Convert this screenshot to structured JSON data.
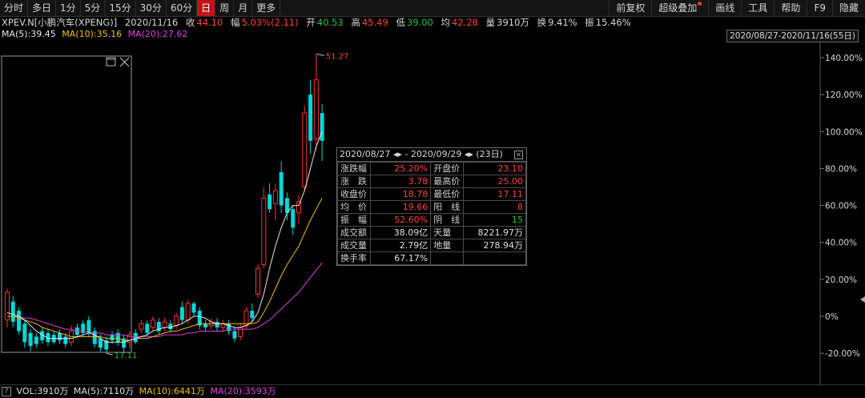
{
  "toolbar": {
    "left_items": [
      "分时",
      "多日",
      "1分",
      "5分",
      "15分",
      "30分",
      "60分",
      "日",
      "周",
      "月",
      "更多"
    ],
    "active": "日",
    "right_items": [
      "前复权",
      "超级叠加",
      "画线",
      "工具",
      "帮助",
      "F9",
      "隐藏"
    ]
  },
  "quote": {
    "symbol": "XPEV.N[小鹏汽车(XPENG)]",
    "date": "2020/11/16",
    "close_label": "收",
    "close": "44.10",
    "amp_label": "幅",
    "amp": "5.03%(2.11)",
    "open_label": "开",
    "open": "40.53",
    "high_label": "高",
    "high": "45.49",
    "low_label": "低",
    "low": "39.00",
    "avg_label": "均",
    "avg": "42.28",
    "vol_label": "量",
    "vol": "3910万",
    "turnover_label": "换",
    "turnover": "9.41%",
    "swing_label": "振",
    "swing": "15.46%"
  },
  "ma": {
    "ma5": "MA(5):39.45",
    "ma10": "MA(10):35.16",
    "ma20": "MA(20):27.62"
  },
  "range": "2020/08/27-2020/11/16(55日)",
  "colors": {
    "up": "#ff3030",
    "down": "#00d8d8",
    "ma5": "#e8e8e8",
    "ma10": "#f0c000",
    "ma20": "#e040e0"
  },
  "chart_data": {
    "type": "candlestick",
    "y_axis_labels": [
      "140.00%",
      "120.00%",
      "100.00%",
      "80.00%",
      "60.00%",
      "40.00%",
      "20.00%",
      "0%",
      "-20.00%"
    ],
    "y_ticks": [
      140,
      120,
      100,
      80,
      60,
      40,
      20,
      0,
      -20
    ],
    "ylim": [
      -25,
      145
    ],
    "high_annotation": "51.27",
    "low_annotation": "17.11",
    "candles": [
      {
        "o": -2,
        "c": 13,
        "h": 15,
        "l": -6
      },
      {
        "o": 8,
        "c": -3,
        "h": 11,
        "l": -6
      },
      {
        "o": 3,
        "c": -8,
        "h": 5,
        "l": -10
      },
      {
        "o": -4,
        "c": -14,
        "h": -2,
        "l": -17
      },
      {
        "o": -9,
        "c": -16,
        "h": -7,
        "l": -19
      },
      {
        "o": -11,
        "c": -15,
        "h": -9,
        "l": -17
      },
      {
        "o": -8,
        "c": -13,
        "h": -6,
        "l": -15
      },
      {
        "o": -9,
        "c": -14,
        "h": -7,
        "l": -16
      },
      {
        "o": -10,
        "c": -14,
        "h": -8,
        "l": -15
      },
      {
        "o": -9,
        "c": -13,
        "h": -7,
        "l": -15
      },
      {
        "o": -11,
        "c": -15,
        "h": -9,
        "l": -17
      },
      {
        "o": -14,
        "c": -8,
        "h": -5,
        "l": -16
      },
      {
        "o": -6,
        "c": -10,
        "h": -4,
        "l": -12
      },
      {
        "o": -4,
        "c": -9,
        "h": -2,
        "l": -11
      },
      {
        "o": -2,
        "c": -9,
        "h": 0,
        "l": -11
      },
      {
        "o": -8,
        "c": -15,
        "h": -6,
        "l": -17
      },
      {
        "o": -12,
        "c": -17,
        "h": -10,
        "l": -19
      },
      {
        "o": -13,
        "c": -18,
        "h": -11,
        "l": -20
      },
      {
        "o": -10,
        "c": -13,
        "h": -8,
        "l": -15
      },
      {
        "o": -9,
        "c": -14,
        "h": -7,
        "l": -16
      },
      {
        "o": -12,
        "c": -17,
        "h": -10,
        "l": -20
      },
      {
        "o": -14,
        "c": -10,
        "h": -8,
        "l": -17
      },
      {
        "o": -9,
        "c": -14,
        "h": -7,
        "l": -15
      },
      {
        "o": -7,
        "c": -4,
        "h": -2,
        "l": -9
      },
      {
        "o": -4,
        "c": -9,
        "h": -2,
        "l": -11
      },
      {
        "o": -6,
        "c": -2,
        "h": 0,
        "l": -8
      },
      {
        "o": -3,
        "c": -8,
        "h": -1,
        "l": -10
      },
      {
        "o": -6,
        "c": -3,
        "h": -1,
        "l": -8
      },
      {
        "o": -4,
        "c": -7,
        "h": -2,
        "l": -9
      },
      {
        "o": -5,
        "c": 0,
        "h": 2,
        "l": -7
      },
      {
        "o": 5,
        "c": -2,
        "h": 8,
        "l": -4
      },
      {
        "o": -2,
        "c": 7,
        "h": 9,
        "l": -4
      },
      {
        "o": 7,
        "c": 2,
        "h": 8,
        "l": 0
      },
      {
        "o": 3,
        "c": -5,
        "h": 5,
        "l": -7
      },
      {
        "o": -4,
        "c": -6,
        "h": -2,
        "l": -8
      },
      {
        "o": -5,
        "c": -3,
        "h": -1,
        "l": -7
      },
      {
        "o": -3,
        "c": -6,
        "h": -1,
        "l": -8
      },
      {
        "o": -6,
        "c": -4,
        "h": -2,
        "l": -8
      },
      {
        "o": -4,
        "c": -8,
        "h": -2,
        "l": -10
      },
      {
        "o": -8,
        "c": -12,
        "h": -6,
        "l": -14
      },
      {
        "o": -11,
        "c": -6,
        "h": -4,
        "l": -13
      },
      {
        "o": -5,
        "c": 3,
        "h": 5,
        "l": -7
      },
      {
        "o": 3,
        "c": -1,
        "h": 7,
        "l": -3
      },
      {
        "o": 12,
        "c": 26,
        "h": 28,
        "l": 10
      },
      {
        "o": 28,
        "c": 64,
        "h": 70,
        "l": 26
      },
      {
        "o": 66,
        "c": 58,
        "h": 72,
        "l": 56
      },
      {
        "o": 61,
        "c": 68,
        "h": 72,
        "l": 52
      },
      {
        "o": 78,
        "c": 60,
        "h": 84,
        "l": 56
      },
      {
        "o": 64,
        "c": 56,
        "h": 67,
        "l": 52
      },
      {
        "o": 58,
        "c": 48,
        "h": 60,
        "l": 44
      },
      {
        "o": 56,
        "c": 62,
        "h": 66,
        "l": 50
      },
      {
        "o": 70,
        "c": 110,
        "h": 114,
        "l": 68
      },
      {
        "o": 120,
        "c": 95,
        "h": 128,
        "l": 88
      },
      {
        "o": 96,
        "c": 128,
        "h": 142,
        "l": 90
      },
      {
        "o": 110,
        "c": 95,
        "h": 115,
        "l": 84
      }
    ],
    "ma5": [
      2,
      1,
      0,
      -2,
      -5,
      -8,
      -10,
      -12,
      -12,
      -12,
      -12,
      -12,
      -11,
      -10,
      -9,
      -10,
      -12,
      -14,
      -14,
      -14,
      -14,
      -13,
      -12,
      -11,
      -10,
      -8,
      -7,
      -6,
      -6,
      -5,
      -4,
      -2,
      0,
      0,
      -1,
      -3,
      -4,
      -4,
      -5,
      -6,
      -6,
      -5,
      -3,
      2,
      12,
      26,
      38,
      48,
      56,
      60,
      60,
      68,
      80,
      92,
      100
    ],
    "ma10": [
      0,
      0,
      -1,
      -2,
      -3,
      -4,
      -6,
      -7,
      -8,
      -9,
      -10,
      -11,
      -11,
      -11,
      -11,
      -11,
      -11,
      -12,
      -12,
      -12,
      -13,
      -13,
      -12,
      -12,
      -12,
      -11,
      -10,
      -9,
      -8,
      -8,
      -7,
      -6,
      -5,
      -4,
      -4,
      -4,
      -4,
      -4,
      -4,
      -4,
      -4,
      -4,
      -4,
      -3,
      2,
      8,
      15,
      22,
      28,
      33,
      38,
      45,
      52,
      58,
      64
    ],
    "ma20": [
      0,
      0,
      0,
      -1,
      -1,
      -2,
      -3,
      -4,
      -5,
      -6,
      -7,
      -7,
      -8,
      -8,
      -9,
      -9,
      -9,
      -10,
      -10,
      -10,
      -10,
      -11,
      -11,
      -11,
      -11,
      -11,
      -11,
      -10,
      -10,
      -10,
      -10,
      -9,
      -9,
      -8,
      -8,
      -8,
      -8,
      -8,
      -7,
      -7,
      -7,
      -7,
      -7,
      -6,
      -4,
      -2,
      1,
      4,
      7,
      10,
      13,
      17,
      21,
      25,
      29
    ]
  },
  "info_panel": {
    "header_from": "2020/08/27",
    "header_to": "2020/09/29",
    "header_days": "(23日)",
    "rows": [
      {
        "l1": "涨跌幅",
        "v1": "25.20%",
        "c1": "red",
        "l2": "开盘价",
        "v2": "23.10",
        "c2": "red"
      },
      {
        "l1": "涨　跌",
        "v1": "3.78",
        "c1": "red",
        "l2": "最高价",
        "v2": "25.00",
        "c2": "red"
      },
      {
        "l1": "收盘价",
        "v1": "18.78",
        "c1": "red",
        "l2": "最低价",
        "v2": "17.11",
        "c2": "red"
      },
      {
        "l1": "均　价",
        "v1": "19.66",
        "c1": "red",
        "l2": "阳　线",
        "v2": "8",
        "c2": "red"
      },
      {
        "l1": "振　幅",
        "v1": "52.60%",
        "c1": "red",
        "l2": "阴　线",
        "v2": "15",
        "c2": "green"
      },
      {
        "l1": "成交额",
        "v1": "38.09亿",
        "c1": "white",
        "l2": "天量",
        "v2": "8221.97万",
        "c2": "white"
      },
      {
        "l1": "成交量",
        "v1": "2.79亿",
        "c1": "white",
        "l2": "地量",
        "v2": "278.94万",
        "c2": "white"
      },
      {
        "l1": "换手率",
        "v1": "67.17%",
        "c1": "white",
        "l2": "",
        "v2": "",
        "c2": "white"
      }
    ]
  },
  "volume": {
    "vol": "VOL:3910万",
    "ma5": "MA(5):7110万",
    "ma10": "MA(10):6441万",
    "ma20": "MA(20):3593万"
  }
}
